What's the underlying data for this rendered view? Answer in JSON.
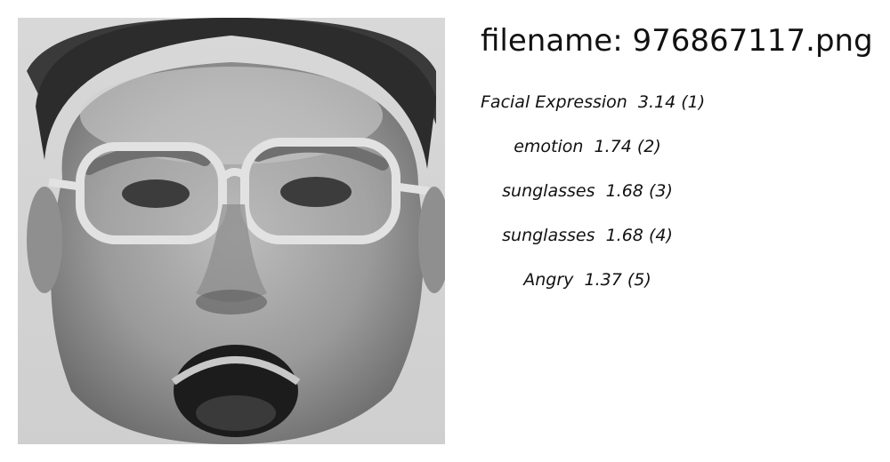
{
  "image": {
    "alt": "grayscale face image"
  },
  "filename": {
    "prefix": "filename: ",
    "value": "976867117.png"
  },
  "labels": [
    {
      "name": "Facial Expression",
      "score": "3.14",
      "rank": "(1)"
    },
    {
      "name": "emotion",
      "score": "1.74",
      "rank": "(2)"
    },
    {
      "name": "sunglasses",
      "score": "1.68",
      "rank": "(3)"
    },
    {
      "name": "sunglasses",
      "score": "1.68",
      "rank": "(4)"
    },
    {
      "name": "Angry",
      "score": "1.37",
      "rank": "(5)"
    }
  ]
}
